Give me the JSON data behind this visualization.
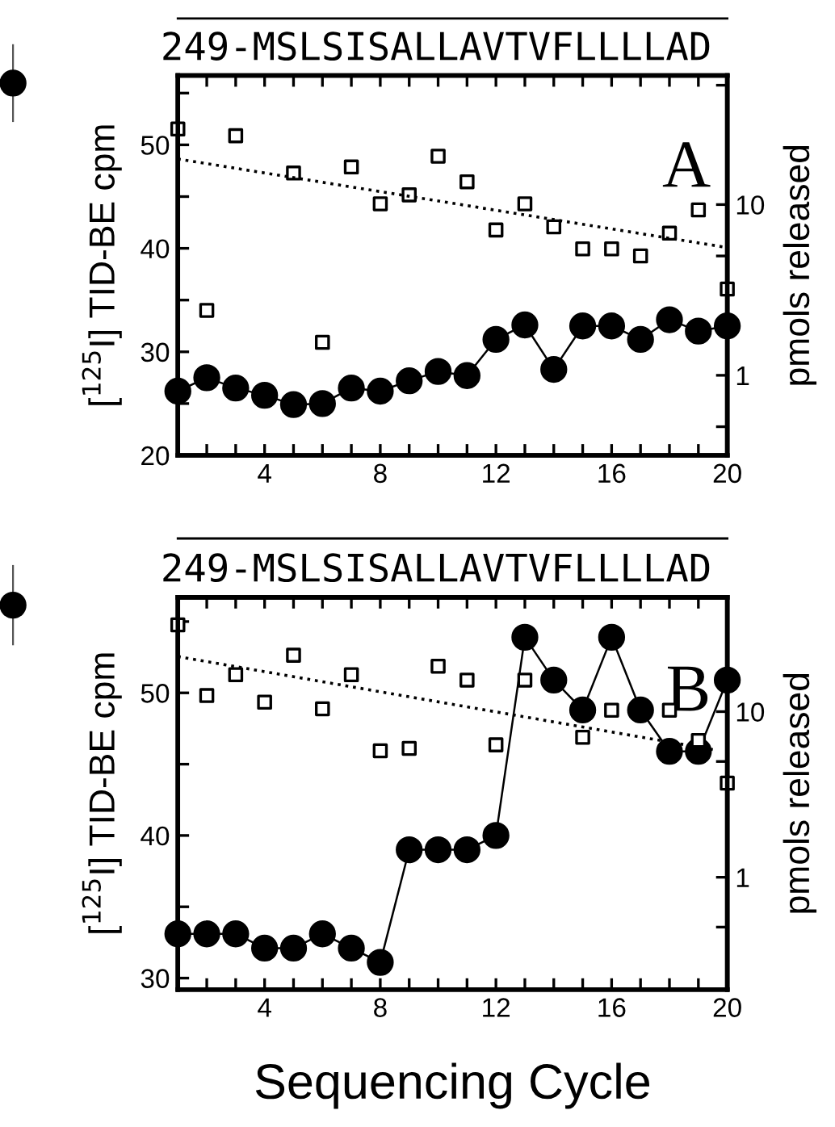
{
  "chart_data": [
    {
      "type": "line",
      "x": [
        1,
        2,
        3,
        4,
        5,
        6,
        7,
        8,
        9,
        10,
        11,
        12,
        13,
        14,
        15,
        16,
        17,
        18,
        19,
        20
      ],
      "xlim": [
        1,
        20
      ],
      "xticks": [
        {
          "value": 1,
          "label": null
        },
        {
          "value": 2,
          "label": null
        },
        {
          "value": 3,
          "label": null
        },
        4,
        {
          "value": 5,
          "label": null
        },
        {
          "value": 6,
          "label": null
        },
        {
          "value": 7,
          "label": null
        },
        8,
        {
          "value": 9,
          "label": null
        },
        {
          "value": 10,
          "label": null
        },
        {
          "value": 11,
          "label": null
        },
        12,
        {
          "value": 13,
          "label": null
        },
        {
          "value": 14,
          "label": null
        },
        {
          "value": 15,
          "label": null
        },
        16,
        {
          "value": 17,
          "label": null
        },
        {
          "value": 18,
          "label": null
        },
        {
          "value": 19,
          "label": null
        },
        20
      ],
      "ylim": [
        20,
        56.7
      ],
      "yticks": [
        20,
        {
          "value": 25,
          "label": null
        },
        30,
        {
          "value": 35,
          "label": null
        },
        40,
        {
          "value": 45,
          "label": null
        },
        50,
        {
          "value": 55,
          "label": null
        }
      ],
      "y2lim": [
        0.34,
        57
      ],
      "y2ticks": [
        {
          "value": 0.5,
          "label": null
        },
        1,
        {
          "value": 5,
          "label": null
        },
        10,
        {
          "value": 50,
          "label": null
        }
      ],
      "log": "y2",
      "ylabel": "[$^{125}$I] TID-BE cpm",
      "y2label": "pmols released",
      "annotations": [
        "249-MSLSISALLAVTVFLLLLAD",
        "A"
      ],
      "series": [
        {
          "color": "#000000",
          "marker": "circle",
          "line_style": "solid",
          "values": [
            26.2,
            27.5,
            26.5,
            25.8,
            24.9,
            25.0,
            26.5,
            26.2,
            27.2,
            28.1,
            27.7,
            31.2,
            32.6,
            28.3,
            32.5,
            32.5,
            31.2,
            33.1,
            32.0,
            32.5
          ]
        },
        {
          "type": "scatter",
          "axis": "y2",
          "color": "#000000",
          "marker": "square",
          "values": [
            27.7,
            2.4,
            25.3,
            null,
            15.3,
            1.56,
            16.6,
            10.1,
            11.4,
            19.2,
            13.6,
            7.1,
            10.1,
            7.4,
            5.5,
            5.5,
            5.0,
            6.8,
            9.3,
            3.2
          ]
        },
        {
          "type": "line",
          "axis": "y2",
          "color": "#000000",
          "marker": "none",
          "line_style": "dotted",
          "x": [
            1,
            20
          ],
          "values": [
            18.5,
            5.6
          ]
        }
      ]
    },
    {
      "type": "line",
      "x": [
        1,
        2,
        3,
        4,
        5,
        6,
        7,
        8,
        9,
        10,
        11,
        12,
        13,
        14,
        15,
        16,
        17,
        18,
        19,
        20
      ],
      "xlim": [
        1,
        20
      ],
      "xticks": [
        {
          "value": 1,
          "label": null
        },
        {
          "value": 2,
          "label": null
        },
        {
          "value": 3,
          "label": null
        },
        4,
        {
          "value": 5,
          "label": null
        },
        {
          "value": 6,
          "label": null
        },
        {
          "value": 7,
          "label": null
        },
        8,
        {
          "value": 9,
          "label": null
        },
        {
          "value": 10,
          "label": null
        },
        {
          "value": 11,
          "label": null
        },
        12,
        {
          "value": 13,
          "label": null
        },
        {
          "value": 14,
          "label": null
        },
        {
          "value": 15,
          "label": null
        },
        16,
        {
          "value": 17,
          "label": null
        },
        {
          "value": 18,
          "label": null
        },
        {
          "value": 19,
          "label": null
        },
        20
      ],
      "ylim": [
        29.2,
        56.7
      ],
      "yticks": [
        30,
        {
          "value": 35,
          "label": null
        },
        40,
        {
          "value": 45,
          "label": null
        },
        50,
        {
          "value": 55,
          "label": null
        }
      ],
      "y2lim": [
        0.21,
        49
      ],
      "y2ticks": [
        {
          "value": 0.5,
          "label": null
        },
        1,
        {
          "value": 5,
          "label": null
        },
        10
      ],
      "log": "y2",
      "ylabel": "[$^{125}$I] TID-BE cpm",
      "y2label": "pmols released",
      "xlabel": "Sequencing Cycle",
      "annotations": [
        "249-MSLSISALLAVTVFLLLLAD",
        "B"
      ],
      "series": [
        {
          "color": "#000000",
          "marker": "circle",
          "line_style": "solid",
          "values": [
            33.1,
            33.1,
            33.1,
            32.1,
            32.1,
            33.1,
            32.1,
            31.1,
            39.0,
            39.0,
            39.0,
            40.0,
            53.9,
            50.9,
            48.8,
            53.9,
            48.8,
            45.9,
            45.9,
            50.9
          ]
        },
        {
          "type": "scatter",
          "axis": "y2",
          "color": "#000000",
          "marker": "square",
          "values": [
            33.4,
            12.5,
            16.7,
            11.4,
            21.9,
            10.4,
            16.7,
            5.8,
            6.0,
            18.8,
            15.5,
            6.3,
            15.5,
            null,
            7.0,
            10.2,
            null,
            10.2,
            6.7,
            3.7
          ]
        },
        {
          "type": "line",
          "axis": "y2",
          "color": "#000000",
          "marker": "none",
          "line_style": "dotted",
          "x": [
            1,
            19.5
          ],
          "values": [
            21.5,
            5.9
          ]
        }
      ]
    }
  ]
}
